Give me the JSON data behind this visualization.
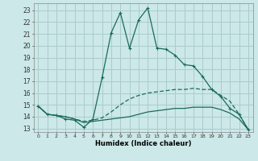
{
  "bg_color": "#cce8e8",
  "grid_color": "#aacccc",
  "line_color": "#1a6b5a",
  "xlabel": "Humidex (Indice chaleur)",
  "ylabel_ticks": [
    13,
    14,
    15,
    16,
    17,
    18,
    19,
    20,
    21,
    22,
    23
  ],
  "xlabel_ticks": [
    0,
    1,
    2,
    3,
    4,
    5,
    6,
    7,
    8,
    9,
    10,
    11,
    12,
    13,
    14,
    15,
    16,
    17,
    18,
    19,
    20,
    21,
    22,
    23
  ],
  "xlim": [
    -0.5,
    23.5
  ],
  "ylim": [
    12.7,
    23.6
  ],
  "line1_x": [
    0,
    1,
    2,
    3,
    4,
    5,
    6,
    7,
    8,
    9,
    10,
    11,
    12,
    13,
    14,
    15,
    16,
    17,
    18,
    19,
    20,
    21,
    22,
    23
  ],
  "line1_y": [
    14.9,
    14.2,
    14.1,
    13.8,
    13.7,
    13.1,
    13.8,
    17.3,
    21.1,
    22.8,
    19.8,
    22.2,
    23.2,
    19.8,
    19.7,
    19.2,
    18.4,
    18.3,
    17.4,
    16.3,
    15.7,
    14.7,
    14.2,
    12.9
  ],
  "line2_x": [
    0,
    1,
    2,
    3,
    4,
    5,
    6,
    7,
    8,
    9,
    10,
    11,
    12,
    13,
    14,
    15,
    16,
    17,
    18,
    19,
    20,
    21,
    22,
    23
  ],
  "line2_y": [
    14.9,
    14.2,
    14.1,
    14.0,
    13.8,
    13.6,
    13.7,
    13.9,
    14.4,
    15.0,
    15.5,
    15.8,
    16.0,
    16.1,
    16.2,
    16.3,
    16.3,
    16.4,
    16.3,
    16.3,
    15.8,
    15.3,
    14.2,
    12.9
  ],
  "line3_x": [
    0,
    1,
    2,
    3,
    4,
    5,
    6,
    7,
    8,
    9,
    10,
    11,
    12,
    13,
    14,
    15,
    16,
    17,
    18,
    19,
    20,
    21,
    22,
    23
  ],
  "line3_y": [
    14.9,
    14.2,
    14.1,
    14.0,
    13.8,
    13.5,
    13.6,
    13.7,
    13.8,
    13.9,
    14.0,
    14.2,
    14.4,
    14.5,
    14.6,
    14.7,
    14.7,
    14.8,
    14.8,
    14.8,
    14.6,
    14.3,
    13.8,
    12.9
  ]
}
